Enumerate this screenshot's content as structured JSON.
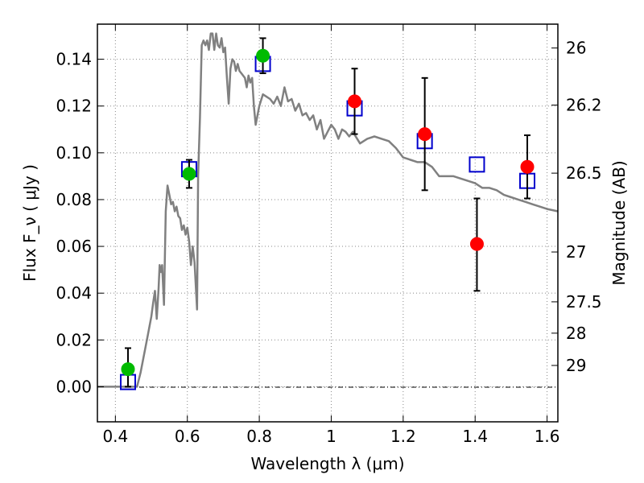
{
  "chart_data": {
    "type": "scatter",
    "title": "",
    "xlabel": "Wavelength  λ (μm)",
    "ylabel": "Flux  F_ν  ( μJy )",
    "ylabel_right": "Magnitude (AB)",
    "xlim": [
      0.35,
      1.63
    ],
    "ylim": [
      -0.015,
      0.155
    ],
    "grid": true,
    "x_ticks": [
      0.4,
      0.6,
      0.8,
      1.0,
      1.2,
      1.4,
      1.6
    ],
    "x_tick_labels": [
      "0.4",
      "0.6",
      "0.8",
      "1",
      "1.2",
      "1.4",
      "1.6"
    ],
    "y_ticks": [
      0.0,
      0.02,
      0.04,
      0.06,
      0.08,
      0.1,
      0.12,
      0.14
    ],
    "y_tick_labels": [
      "0.00",
      "0.02",
      "0.04",
      "0.06",
      "0.08",
      "0.10",
      "0.12",
      "0.14"
    ],
    "right_ticks": [
      {
        "label": "26",
        "flux": 0.1448
      },
      {
        "label": "26.2",
        "flux": 0.1204
      },
      {
        "label": "26.5",
        "flux": 0.0913
      },
      {
        "label": "27",
        "flux": 0.0576
      },
      {
        "label": "27.5",
        "flux": 0.0363
      },
      {
        "label": "28",
        "flux": 0.0229
      },
      {
        "label": "29",
        "flux": 0.0091
      }
    ],
    "colors": {
      "model": "#808080",
      "model_points": "#0000cc",
      "green_points": "#00bb00",
      "red_points": "#ff0000",
      "error_bars": "#000000",
      "grid": "#888888"
    },
    "series": [
      {
        "kind": "line",
        "points": [
          [
            0.35,
            0.0
          ],
          [
            0.46,
            0.0
          ],
          [
            0.47,
            0.006
          ],
          [
            0.49,
            0.022
          ],
          [
            0.5,
            0.03
          ],
          [
            0.505,
            0.036
          ],
          [
            0.51,
            0.041
          ],
          [
            0.515,
            0.029
          ],
          [
            0.52,
            0.042
          ],
          [
            0.523,
            0.052
          ],
          [
            0.527,
            0.049
          ],
          [
            0.53,
            0.052
          ],
          [
            0.535,
            0.035
          ],
          [
            0.54,
            0.075
          ],
          [
            0.545,
            0.086
          ],
          [
            0.55,
            0.082
          ],
          [
            0.555,
            0.078
          ],
          [
            0.56,
            0.079
          ],
          [
            0.565,
            0.075
          ],
          [
            0.57,
            0.077
          ],
          [
            0.575,
            0.073
          ],
          [
            0.58,
            0.072
          ],
          [
            0.585,
            0.067
          ],
          [
            0.59,
            0.069
          ],
          [
            0.595,
            0.065
          ],
          [
            0.6,
            0.068
          ],
          [
            0.605,
            0.062
          ],
          [
            0.61,
            0.052
          ],
          [
            0.615,
            0.06
          ],
          [
            0.62,
            0.053
          ],
          [
            0.627,
            0.033
          ],
          [
            0.63,
            0.09
          ],
          [
            0.635,
            0.115
          ],
          [
            0.64,
            0.146
          ],
          [
            0.645,
            0.148
          ],
          [
            0.65,
            0.146
          ],
          [
            0.655,
            0.148
          ],
          [
            0.66,
            0.144
          ],
          [
            0.665,
            0.151
          ],
          [
            0.67,
            0.151
          ],
          [
            0.675,
            0.144
          ],
          [
            0.68,
            0.151
          ],
          [
            0.685,
            0.146
          ],
          [
            0.69,
            0.145
          ],
          [
            0.695,
            0.149
          ],
          [
            0.7,
            0.143
          ],
          [
            0.705,
            0.145
          ],
          [
            0.71,
            0.132
          ],
          [
            0.715,
            0.121
          ],
          [
            0.72,
            0.136
          ],
          [
            0.725,
            0.14
          ],
          [
            0.73,
            0.139
          ],
          [
            0.735,
            0.135
          ],
          [
            0.74,
            0.138
          ],
          [
            0.745,
            0.135
          ],
          [
            0.75,
            0.134
          ],
          [
            0.76,
            0.132
          ],
          [
            0.765,
            0.128
          ],
          [
            0.77,
            0.133
          ],
          [
            0.775,
            0.13
          ],
          [
            0.78,
            0.132
          ],
          [
            0.785,
            0.12
          ],
          [
            0.79,
            0.112
          ],
          [
            0.8,
            0.12
          ],
          [
            0.81,
            0.125
          ],
          [
            0.82,
            0.124
          ],
          [
            0.83,
            0.123
          ],
          [
            0.84,
            0.121
          ],
          [
            0.85,
            0.124
          ],
          [
            0.86,
            0.12
          ],
          [
            0.87,
            0.128
          ],
          [
            0.88,
            0.122
          ],
          [
            0.89,
            0.123
          ],
          [
            0.9,
            0.118
          ],
          [
            0.91,
            0.121
          ],
          [
            0.92,
            0.116
          ],
          [
            0.93,
            0.117
          ],
          [
            0.94,
            0.114
          ],
          [
            0.95,
            0.116
          ],
          [
            0.96,
            0.11
          ],
          [
            0.97,
            0.114
          ],
          [
            0.98,
            0.106
          ],
          [
            0.99,
            0.109
          ],
          [
            1.0,
            0.112
          ],
          [
            1.01,
            0.11
          ],
          [
            1.02,
            0.106
          ],
          [
            1.03,
            0.11
          ],
          [
            1.04,
            0.109
          ],
          [
            1.05,
            0.107
          ],
          [
            1.06,
            0.109
          ],
          [
            1.08,
            0.104
          ],
          [
            1.1,
            0.106
          ],
          [
            1.12,
            0.107
          ],
          [
            1.14,
            0.106
          ],
          [
            1.16,
            0.105
          ],
          [
            1.18,
            0.102
          ],
          [
            1.2,
            0.098
          ],
          [
            1.22,
            0.097
          ],
          [
            1.24,
            0.096
          ],
          [
            1.26,
            0.096
          ],
          [
            1.28,
            0.094
          ],
          [
            1.3,
            0.09
          ],
          [
            1.32,
            0.09
          ],
          [
            1.34,
            0.09
          ],
          [
            1.36,
            0.089
          ],
          [
            1.38,
            0.088
          ],
          [
            1.4,
            0.087
          ],
          [
            1.42,
            0.085
          ],
          [
            1.44,
            0.085
          ],
          [
            1.46,
            0.084
          ],
          [
            1.48,
            0.082
          ],
          [
            1.5,
            0.081
          ],
          [
            1.52,
            0.08
          ],
          [
            1.54,
            0.079
          ],
          [
            1.56,
            0.078
          ],
          [
            1.58,
            0.077
          ],
          [
            1.6,
            0.076
          ],
          [
            1.63,
            0.075
          ]
        ]
      },
      {
        "kind": "squares",
        "points": [
          [
            0.435,
            0.002
          ],
          [
            0.605,
            0.093
          ],
          [
            0.81,
            0.138
          ],
          [
            1.065,
            0.119
          ],
          [
            1.26,
            0.105
          ],
          [
            1.405,
            0.095
          ],
          [
            1.545,
            0.088
          ]
        ]
      },
      {
        "kind": "green-circles",
        "points": [
          {
            "x": 0.435,
            "y": 0.0075,
            "err_low": 0.0,
            "err_high": 0.0165
          },
          {
            "x": 0.605,
            "y": 0.091,
            "err_low": 0.085,
            "err_high": 0.097
          },
          {
            "x": 0.81,
            "y": 0.1415,
            "err_low": 0.134,
            "err_high": 0.149
          }
        ]
      },
      {
        "kind": "red-circles",
        "points": [
          {
            "x": 1.065,
            "y": 0.122,
            "err_low": 0.108,
            "err_high": 0.136
          },
          {
            "x": 1.26,
            "y": 0.108,
            "err_low": 0.084,
            "err_high": 0.132
          },
          {
            "x": 1.405,
            "y": 0.061,
            "err_low": 0.041,
            "err_high": 0.0805
          },
          {
            "x": 1.545,
            "y": 0.094,
            "err_low": 0.0805,
            "err_high": 0.1075
          }
        ]
      }
    ]
  }
}
